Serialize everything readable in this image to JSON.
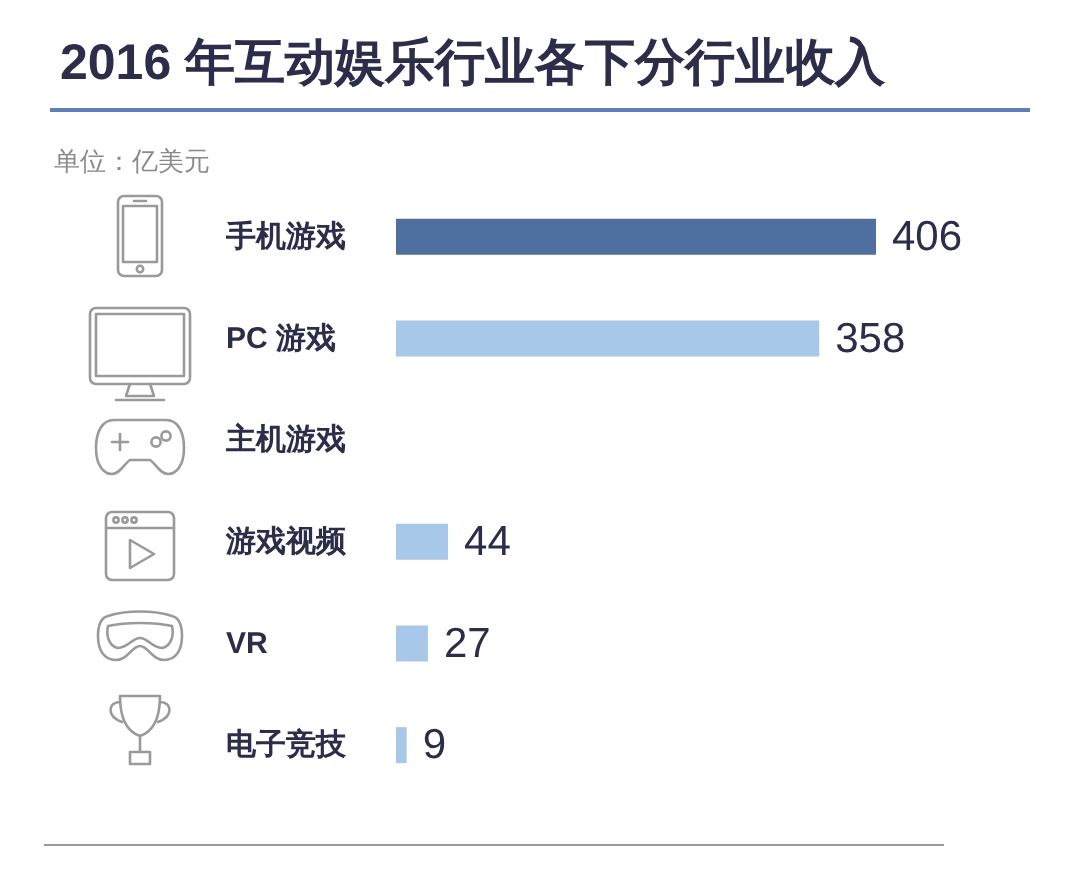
{
  "chart_data": {
    "type": "bar",
    "orientation": "horizontal",
    "title": "2016 年互动娱乐行业各下分行业收入",
    "subtitle": "单位：亿美元",
    "categories": [
      "手机游戏",
      "PC 游戏",
      "主机游戏",
      "游戏视频",
      "VR",
      "电子竞技"
    ],
    "values": [
      406,
      358,
      null,
      44,
      27,
      9
    ],
    "colors": [
      "#4f6fa0",
      "#a8c8ea",
      "#a8c8ea",
      "#a8c8ea",
      "#a8c8ea",
      "#a8c8ea"
    ],
    "data_labels": true,
    "tick_labels": "y"
  }
}
